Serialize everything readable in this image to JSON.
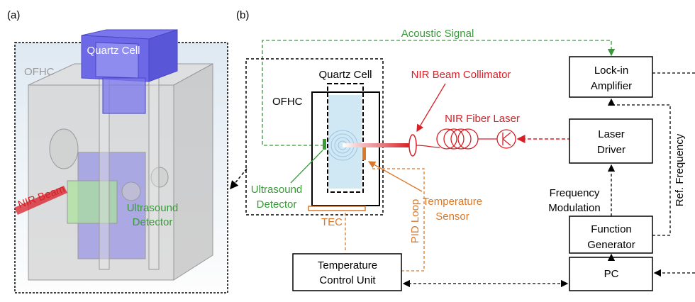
{
  "panel_a": {
    "tag": "(a)",
    "quartz_cell": "Quartz Cell",
    "ofhc": "OFHC",
    "nir_beam": "NIR Beam",
    "ultrasound_detector": [
      "Ultrasound",
      "Detector"
    ]
  },
  "panel_b": {
    "tag": "(b)",
    "acoustic_signal": "Acoustic Signal",
    "quartz_cell": "Quartz Cell",
    "ofhc": "OFHC",
    "collimator": "NIR Beam Collimator",
    "fiber_laser": "NIR Fiber Laser",
    "ultrasound_detector": [
      "Ultrasound",
      "Detector"
    ],
    "temperature_sensor": [
      "Temperature",
      "Sensor"
    ],
    "tec": "TEC",
    "pid_loop": "PID Loop",
    "temperature_control_unit": [
      "Temperature",
      "Control Unit"
    ],
    "lock_in_amplifier": [
      "Lock-in",
      "Amplifier"
    ],
    "laser_driver": [
      "Laser",
      "Driver"
    ],
    "function_generator": [
      "Function",
      "Generator"
    ],
    "pc": "PC",
    "frequency_modulation": [
      "Frequency",
      "Modulation"
    ],
    "ref_frequency": "Ref. Frequency"
  }
}
